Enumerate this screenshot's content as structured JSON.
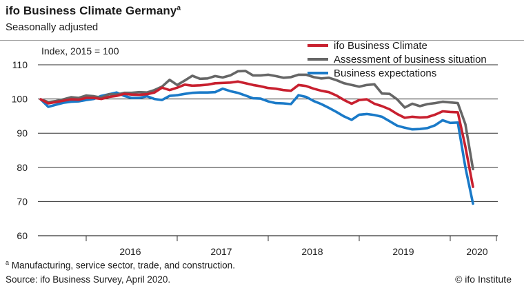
{
  "header": {
    "title": "ifo Business Climate Germany",
    "title_sup": "a",
    "subtitle": "Seasonally adjusted"
  },
  "footer": {
    "note_sup": "a",
    "note": "Manufacturing, service sector, trade, and construction.",
    "source": "Source: ifo Business Survey, April 2020.",
    "copyright": "© ifo Institute"
  },
  "chart_data": {
    "type": "line",
    "title": "ifo Business Climate Germany",
    "subtitle": "Seasonally adjusted",
    "ylabel": "Index, 2015 = 100",
    "ylim": [
      60,
      110
    ],
    "yticks": [
      60,
      70,
      80,
      90,
      100,
      110
    ],
    "year_labels": [
      "2016",
      "2017",
      "2018",
      "2019",
      "2020"
    ],
    "grid": true,
    "legend_position": "top-right",
    "x_start": "2015-07",
    "x_end": "2020-04",
    "x": [
      "2015-07",
      "2015-08",
      "2015-09",
      "2015-10",
      "2015-11",
      "2015-12",
      "2016-01",
      "2016-02",
      "2016-03",
      "2016-04",
      "2016-05",
      "2016-06",
      "2016-07",
      "2016-08",
      "2016-09",
      "2016-10",
      "2016-11",
      "2016-12",
      "2017-01",
      "2017-02",
      "2017-03",
      "2017-04",
      "2017-05",
      "2017-06",
      "2017-07",
      "2017-08",
      "2017-09",
      "2017-10",
      "2017-11",
      "2017-12",
      "2018-01",
      "2018-02",
      "2018-03",
      "2018-04",
      "2018-05",
      "2018-06",
      "2018-07",
      "2018-08",
      "2018-09",
      "2018-10",
      "2018-11",
      "2018-12",
      "2019-01",
      "2019-02",
      "2019-03",
      "2019-04",
      "2019-05",
      "2019-06",
      "2019-07",
      "2019-08",
      "2019-09",
      "2019-10",
      "2019-11",
      "2019-12",
      "2020-01",
      "2020-02",
      "2020-03",
      "2020-04"
    ],
    "series": [
      {
        "name": "ifo Business Climate",
        "color": "#c8202f",
        "values": [
          99.9,
          98.7,
          99.1,
          99.5,
          99.9,
          99.8,
          100.3,
          100.3,
          100.0,
          100.6,
          100.9,
          101.5,
          101.3,
          101.2,
          101.4,
          101.9,
          103.3,
          102.6,
          103.3,
          104.2,
          103.9,
          104.0,
          104.2,
          104.6,
          104.7,
          104.8,
          105.1,
          104.6,
          104.1,
          103.7,
          103.2,
          103.0,
          102.6,
          102.4,
          104.1,
          103.8,
          103.0,
          102.4,
          102.0,
          101.0,
          99.7,
          98.6,
          99.7,
          99.9,
          98.6,
          97.9,
          97.0,
          95.6,
          94.5,
          94.8,
          94.6,
          94.7,
          95.4,
          96.4,
          96.2,
          96.1,
          86.0,
          74.3
        ]
      },
      {
        "name": "Assessment of business situation",
        "color": "#666666",
        "values": [
          99.9,
          99.1,
          99.4,
          99.9,
          100.5,
          100.3,
          101.0,
          100.8,
          100.4,
          101.4,
          101.3,
          101.8,
          101.8,
          102.0,
          101.9,
          102.6,
          103.6,
          105.6,
          104.1,
          105.4,
          106.8,
          105.9,
          106.0,
          106.7,
          106.3,
          106.9,
          108.1,
          108.2,
          106.9,
          106.9,
          107.1,
          106.7,
          106.2,
          106.4,
          107.1,
          107.1,
          106.4,
          106.0,
          106.2,
          105.5,
          104.6,
          104.1,
          103.6,
          104.1,
          104.3,
          101.6,
          101.5,
          99.9,
          97.5,
          98.6,
          97.9,
          98.5,
          98.8,
          99.2,
          99.0,
          98.8,
          92.6,
          79.5
        ]
      },
      {
        "name": "Business expectations",
        "color": "#1a7ac8",
        "values": [
          99.9,
          97.7,
          98.3,
          98.9,
          99.2,
          99.3,
          99.7,
          100.0,
          100.9,
          101.4,
          101.9,
          100.9,
          100.3,
          100.3,
          100.8,
          100.0,
          99.7,
          100.9,
          101.1,
          101.5,
          101.8,
          101.9,
          101.9,
          102.0,
          103.0,
          102.3,
          101.8,
          101.0,
          100.2,
          100.1,
          99.3,
          98.8,
          98.7,
          98.5,
          101.1,
          100.6,
          99.4,
          98.5,
          97.4,
          96.2,
          94.9,
          93.9,
          95.4,
          95.6,
          95.3,
          94.8,
          93.5,
          92.2,
          91.6,
          91.1,
          91.2,
          91.5,
          92.3,
          93.8,
          93.0,
          93.1,
          80.0,
          69.4
        ]
      }
    ]
  }
}
